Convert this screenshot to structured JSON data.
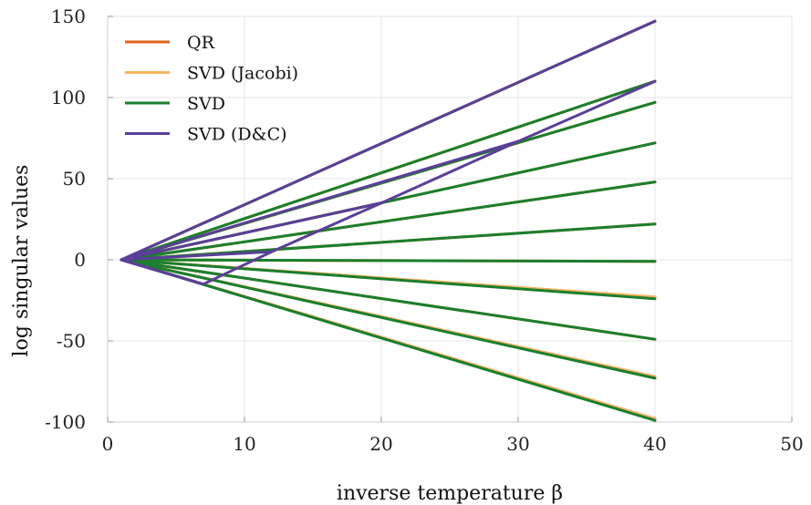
{
  "chart_data": {
    "type": "line",
    "xlabel": "inverse temperature β",
    "ylabel": "log singular values",
    "xlim": [
      0,
      50
    ],
    "ylim": [
      -100,
      150
    ],
    "xticks": [
      0,
      10,
      20,
      30,
      40,
      50
    ],
    "yticks": [
      -100,
      -50,
      0,
      50,
      100,
      150
    ],
    "xtick_labels": [
      "0",
      "10",
      "20",
      "30",
      "40",
      "50"
    ],
    "ytick_labels": [
      "-100",
      "-50",
      "0",
      "50",
      "100",
      "150"
    ],
    "grid": true,
    "legend_position": "top-left",
    "series": [
      {
        "name": "QR",
        "color": "#e0641b",
        "lines": [
          [
            [
              1,
              0
            ],
            [
              40,
              147
            ]
          ],
          [
            [
              1,
              0
            ],
            [
              40,
              110
            ]
          ],
          [
            [
              1,
              0
            ],
            [
              40,
              97
            ]
          ],
          [
            [
              1,
              0
            ],
            [
              40,
              72
            ]
          ],
          [
            [
              1,
              0
            ],
            [
              40,
              48
            ]
          ],
          [
            [
              1,
              0
            ],
            [
              40,
              22
            ]
          ],
          [
            [
              1,
              0
            ],
            [
              40,
              -1
            ]
          ],
          [
            [
              1,
              0
            ],
            [
              40,
              -23
            ]
          ],
          [
            [
              1,
              0
            ],
            [
              40,
              -49
            ]
          ],
          [
            [
              1,
              0
            ],
            [
              40,
              -72
            ]
          ],
          [
            [
              1,
              0
            ],
            [
              40,
              -98
            ]
          ]
        ]
      },
      {
        "name": "SVD (Jacobi)",
        "color": "#f5b65e",
        "lines": [
          [
            [
              1,
              0
            ],
            [
              40,
              147
            ]
          ],
          [
            [
              1,
              0
            ],
            [
              40,
              110
            ]
          ],
          [
            [
              1,
              0
            ],
            [
              40,
              97
            ]
          ],
          [
            [
              1,
              0
            ],
            [
              40,
              72
            ]
          ],
          [
            [
              1,
              0
            ],
            [
              40,
              48
            ]
          ],
          [
            [
              1,
              0
            ],
            [
              40,
              22
            ]
          ],
          [
            [
              1,
              0
            ],
            [
              40,
              -1
            ]
          ],
          [
            [
              1,
              0
            ],
            [
              40,
              -23
            ]
          ],
          [
            [
              1,
              0
            ],
            [
              40,
              -49
            ]
          ],
          [
            [
              1,
              0
            ],
            [
              40,
              -72
            ]
          ],
          [
            [
              1,
              0
            ],
            [
              40,
              -98
            ]
          ]
        ]
      },
      {
        "name": "SVD",
        "color": "#1a7f2e",
        "lines": [
          [
            [
              1,
              0
            ],
            [
              40,
              147
            ]
          ],
          [
            [
              1,
              0
            ],
            [
              40,
              110
            ]
          ],
          [
            [
              1,
              0
            ],
            [
              40,
              97
            ]
          ],
          [
            [
              1,
              0
            ],
            [
              40,
              72
            ]
          ],
          [
            [
              1,
              0
            ],
            [
              40,
              48
            ]
          ],
          [
            [
              1,
              0
            ],
            [
              40,
              22
            ]
          ],
          [
            [
              1,
              0
            ],
            [
              40,
              -1
            ]
          ],
          [
            [
              1,
              0
            ],
            [
              40,
              -24
            ]
          ],
          [
            [
              1,
              0
            ],
            [
              40,
              -49
            ]
          ],
          [
            [
              1,
              0
            ],
            [
              40,
              -73
            ]
          ],
          [
            [
              1,
              0
            ],
            [
              40,
              -99
            ]
          ]
        ]
      },
      {
        "name": "SVD (D&C)",
        "color": "#5b3f99",
        "lines": [
          [
            [
              1,
              0
            ],
            [
              40,
              147
            ]
          ],
          [
            [
              1,
              0
            ],
            [
              30,
              73
            ],
            [
              40,
              110
            ]
          ],
          [
            [
              1,
              0
            ],
            [
              20,
              35
            ],
            [
              30,
              73
            ]
          ],
          [
            [
              1,
              0
            ],
            [
              12,
              5
            ],
            [
              20,
              35
            ]
          ],
          [
            [
              1,
              0
            ],
            [
              7,
              -15
            ],
            [
              12,
              5
            ]
          ],
          [
            [
              1,
              0
            ],
            [
              7,
              -15
            ]
          ]
        ]
      }
    ]
  }
}
